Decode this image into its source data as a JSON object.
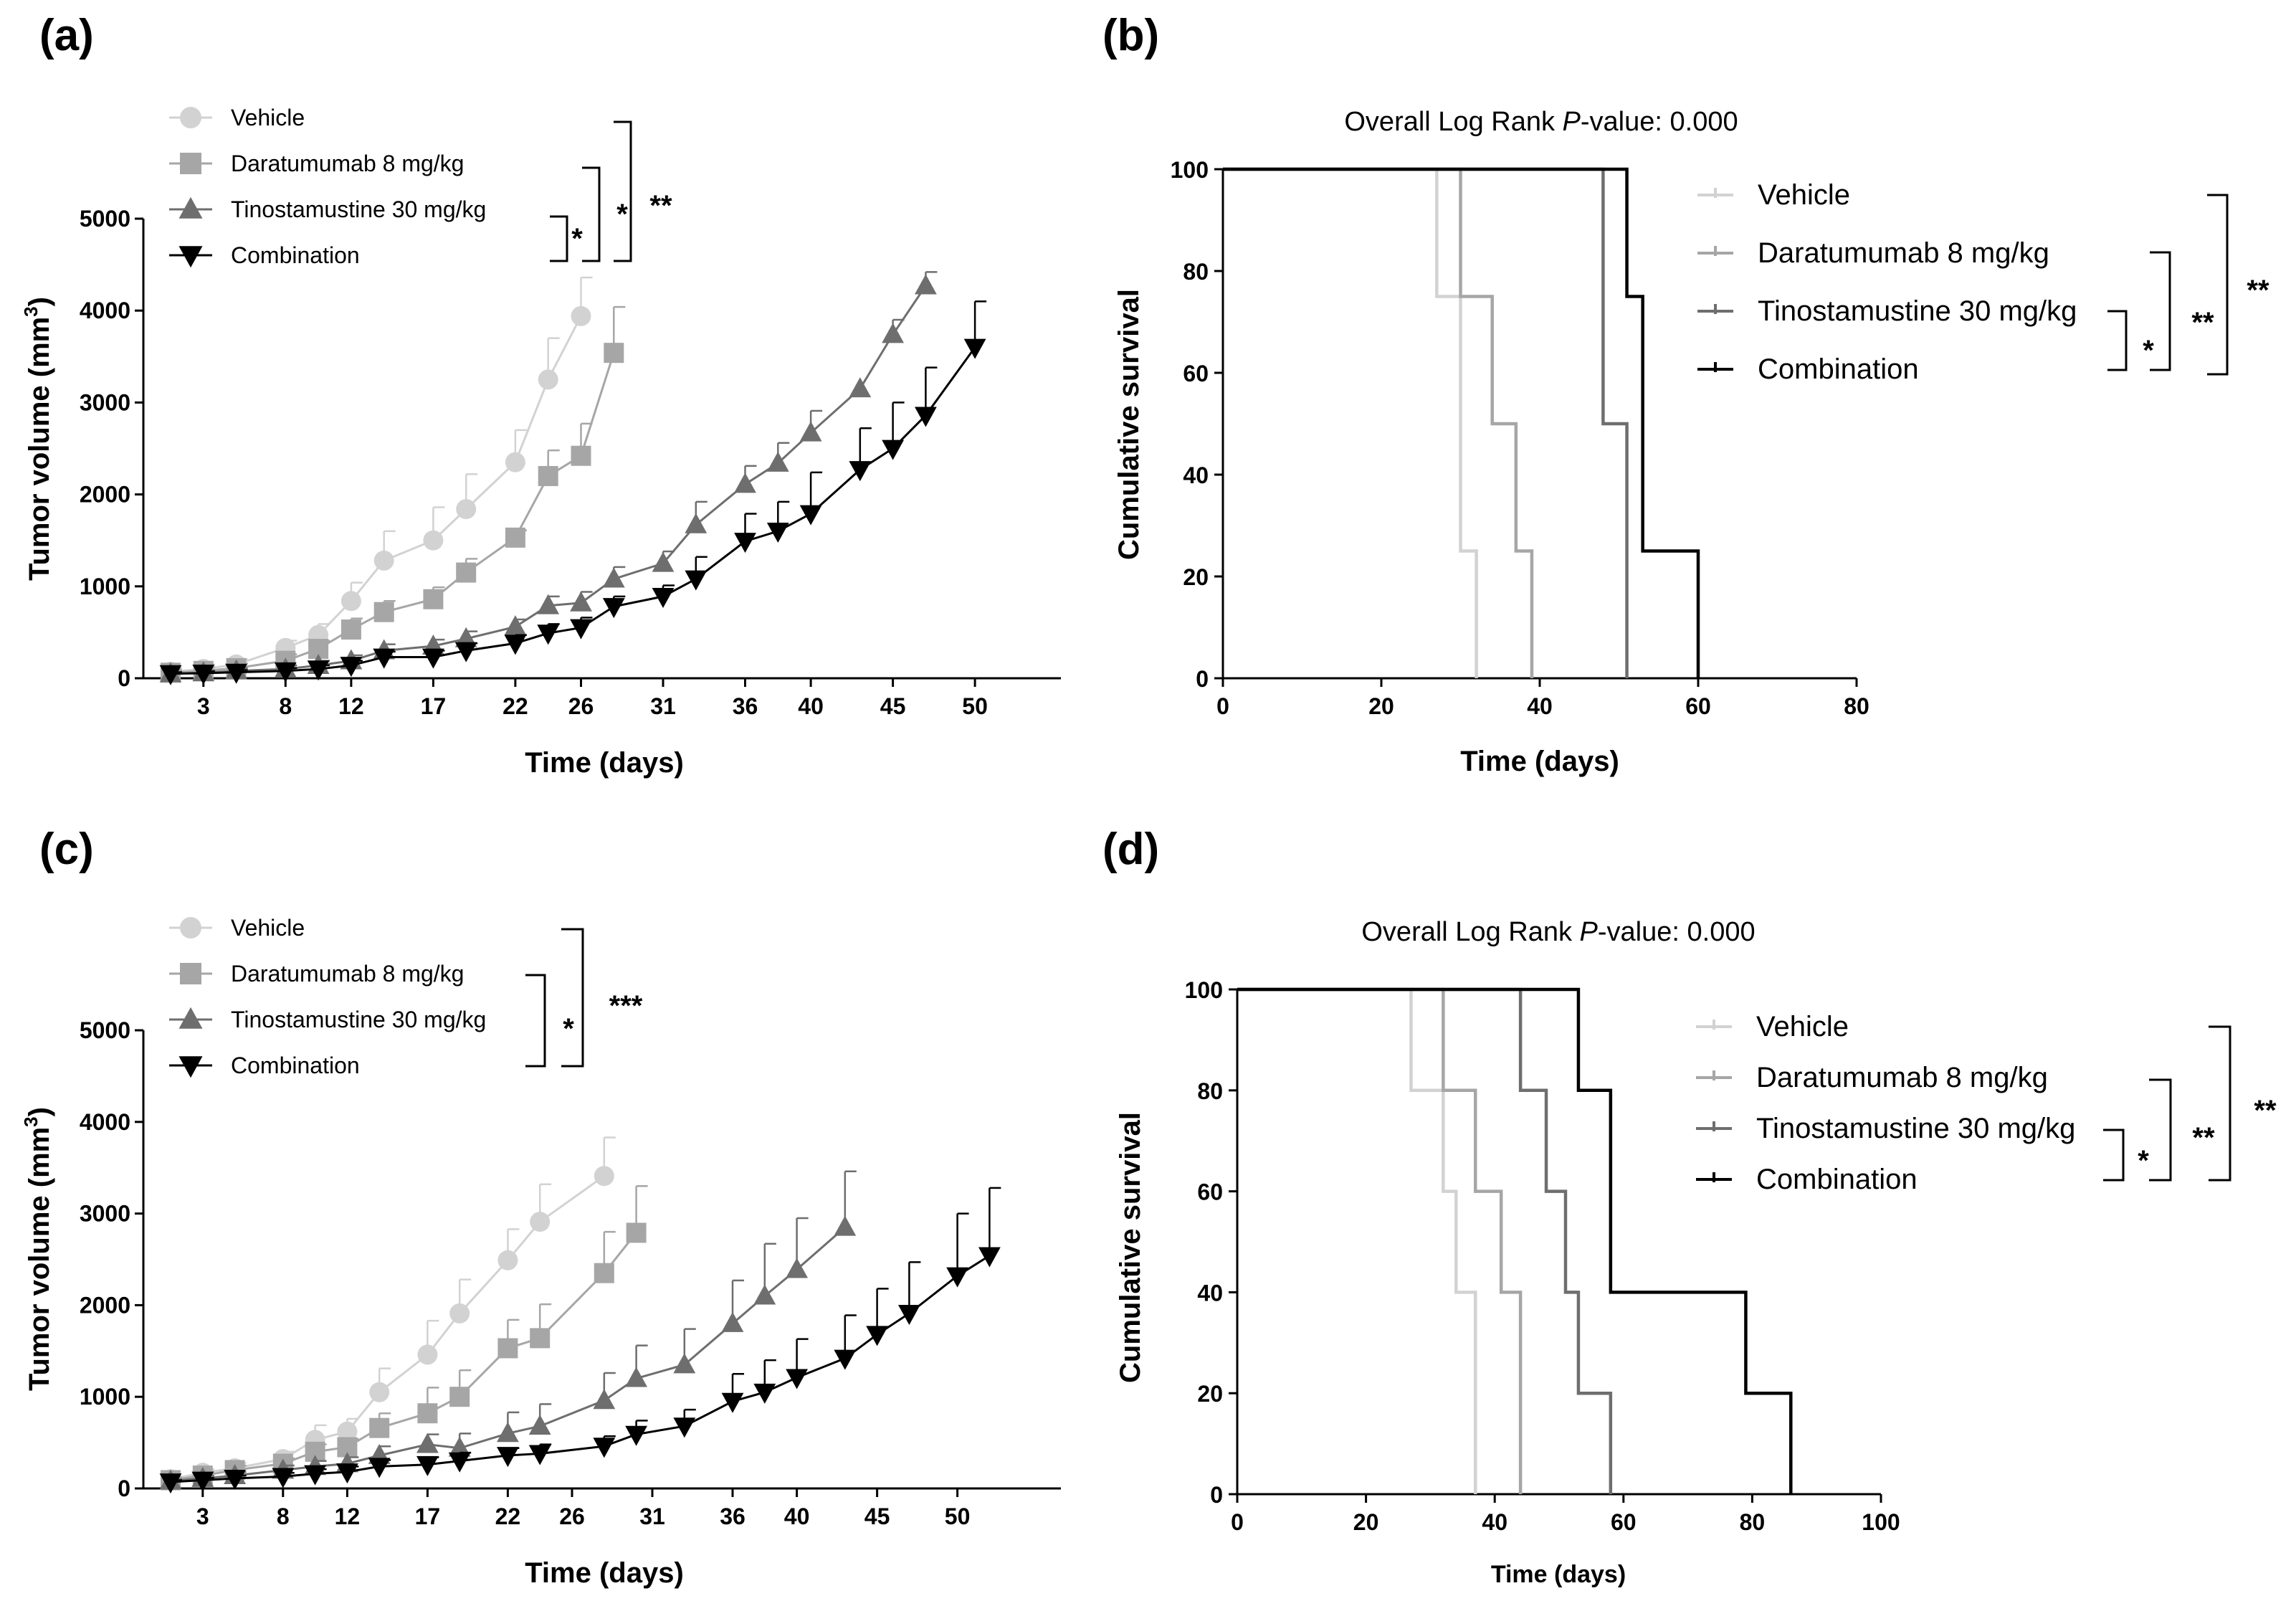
{
  "legend": [
    "Vehicle",
    "Daratumumab 8 mg/kg",
    "Tinostamustine 30 mg/kg",
    "Combination"
  ],
  "colors": {
    "Vehicle": "#d2d2d2",
    "Daratumumab 8 mg/kg": "#a6a6a6",
    "Tinostamustine 30 mg/kg": "#6e6e6e",
    "Combination": "#000000"
  },
  "chart_data": [
    {
      "panel": "(a)",
      "type": "line",
      "xlabel": "Time (days)",
      "ylabel": "Tumor volume (mm3)",
      "x_ticks": [
        "3",
        "8",
        "12",
        "17",
        "22",
        "26",
        "31",
        "36",
        "40",
        "45",
        "50"
      ],
      "ylim": [
        0,
        5000
      ],
      "y_ticks": [
        "0",
        "1000",
        "2000",
        "3000",
        "4000",
        "5000"
      ],
      "markers": [
        "circle",
        "square",
        "triangle-up",
        "triangle-down"
      ],
      "series": [
        {
          "name": "Vehicle",
          "x": [
            1,
            3,
            5,
            8,
            10,
            12,
            14,
            17,
            19,
            22,
            24,
            26
          ],
          "y": [
            70,
            100,
            150,
            330,
            470,
            840,
            1280,
            1500,
            1840,
            2350,
            3250,
            3940
          ],
          "err": [
            40,
            50,
            60,
            80,
            120,
            200,
            320,
            360,
            380,
            350,
            450,
            420
          ]
        },
        {
          "name": "Daratumumab 8 mg/kg",
          "x": [
            1,
            3,
            5,
            8,
            10,
            12,
            14,
            17,
            19,
            22,
            24,
            26,
            28
          ],
          "y": [
            60,
            80,
            110,
            190,
            320,
            530,
            720,
            860,
            1150,
            1530,
            2200,
            2420,
            3540
          ],
          "err": [
            30,
            40,
            50,
            70,
            90,
            120,
            120,
            130,
            150,
            80,
            280,
            350,
            500
          ]
        },
        {
          "name": "Tinostamustine 30 mg/kg",
          "x": [
            1,
            3,
            5,
            8,
            10,
            12,
            14,
            17,
            19,
            22,
            24,
            26,
            28,
            31,
            33,
            36,
            38,
            40,
            43,
            45,
            47
          ],
          "y": [
            50,
            60,
            80,
            100,
            140,
            190,
            300,
            350,
            430,
            560,
            790,
            820,
            1080,
            1250,
            1670,
            2110,
            2340,
            2670,
            3150,
            3740,
            4270
          ],
          "err": [
            20,
            25,
            30,
            40,
            50,
            60,
            70,
            70,
            80,
            80,
            100,
            120,
            130,
            130,
            250,
            200,
            220,
            240,
            0,
            160,
            150
          ]
        },
        {
          "name": "Combination",
          "x": [
            1,
            3,
            5,
            8,
            10,
            12,
            14,
            17,
            19,
            22,
            24,
            26,
            28,
            31,
            33,
            36,
            38,
            40,
            43,
            45,
            47,
            50
          ],
          "y": [
            50,
            55,
            65,
            80,
            100,
            140,
            230,
            230,
            300,
            380,
            490,
            550,
            780,
            890,
            1080,
            1490,
            1600,
            1790,
            2270,
            2500,
            2860,
            3600
          ],
          "err": [
            15,
            20,
            25,
            30,
            40,
            50,
            60,
            70,
            80,
            90,
            100,
            110,
            110,
            120,
            240,
            300,
            320,
            450,
            450,
            500,
            520,
            500
          ]
        }
      ],
      "legend_position": "top-left",
      "significance": [
        "*",
        "*",
        "**"
      ]
    },
    {
      "panel": "(b)",
      "type": "line",
      "subtype": "kaplan-meier",
      "title": "Overall Log Rank P-value: 0.000",
      "xlabel": "Time (days)",
      "ylabel": "Cumulative survival",
      "xlim": [
        0,
        80
      ],
      "ylim": [
        0,
        100
      ],
      "x_ticks": [
        "0",
        "20",
        "40",
        "60",
        "80"
      ],
      "y_ticks": [
        "0",
        "20",
        "40",
        "60",
        "80",
        "100"
      ],
      "series": [
        {
          "name": "Vehicle",
          "x": [
            0,
            27,
            30,
            32
          ],
          "y": [
            100,
            75,
            25,
            0
          ]
        },
        {
          "name": "Daratumumab 8 mg/kg",
          "x": [
            0,
            30,
            34,
            37,
            39
          ],
          "y": [
            100,
            75,
            50,
            25,
            0
          ]
        },
        {
          "name": "Tinostamustine 30 mg/kg",
          "x": [
            0,
            48,
            51
          ],
          "y": [
            100,
            50,
            0
          ]
        },
        {
          "name": "Combination",
          "x": [
            0,
            51,
            53,
            60
          ],
          "y": [
            100,
            75,
            25,
            0
          ]
        }
      ],
      "legend_position": "top-right",
      "significance": [
        "*",
        "**",
        "**"
      ]
    },
    {
      "panel": "(c)",
      "type": "line",
      "xlabel": "Time (days)",
      "ylabel": "Tumor volume (mm3)",
      "x_ticks": [
        "3",
        "8",
        "12",
        "17",
        "22",
        "26",
        "31",
        "36",
        "40",
        "45",
        "50"
      ],
      "ylim": [
        0,
        5000
      ],
      "y_ticks": [
        "0",
        "1000",
        "2000",
        "3000",
        "4000",
        "5000"
      ],
      "markers": [
        "circle",
        "square",
        "triangle-up",
        "triangle-down"
      ],
      "series": [
        {
          "name": "Vehicle",
          "x": [
            1,
            3,
            5,
            8,
            10,
            12,
            14,
            17,
            19,
            22,
            24,
            28
          ],
          "y": [
            100,
            170,
            220,
            320,
            530,
            620,
            1050,
            1460,
            1910,
            2490,
            2910,
            3410
          ],
          "err": [
            30,
            40,
            60,
            80,
            160,
            140,
            260,
            370,
            370,
            340,
            410,
            420
          ]
        },
        {
          "name": "Daratumumab 8 mg/kg",
          "x": [
            1,
            3,
            5,
            8,
            10,
            12,
            14,
            17,
            19,
            22,
            24,
            28,
            30
          ],
          "y": [
            90,
            140,
            200,
            270,
            400,
            450,
            660,
            820,
            1000,
            1530,
            1640,
            2350,
            2790
          ],
          "err": [
            30,
            40,
            50,
            60,
            80,
            90,
            160,
            280,
            290,
            310,
            370,
            450,
            510
          ]
        },
        {
          "name": "Tinostamustine 30 mg/kg",
          "x": [
            1,
            3,
            5,
            8,
            10,
            12,
            14,
            17,
            19,
            22,
            24,
            28,
            30,
            33,
            36,
            38,
            40,
            43
          ],
          "y": [
            80,
            110,
            140,
            200,
            240,
            270,
            360,
            480,
            440,
            600,
            680,
            960,
            1200,
            1350,
            1800,
            2100,
            2390,
            2850
          ],
          "err": [
            20,
            30,
            40,
            50,
            60,
            70,
            100,
            110,
            160,
            230,
            240,
            300,
            360,
            390,
            470,
            570,
            560,
            610
          ]
        },
        {
          "name": "Combination",
          "x": [
            1,
            3,
            5,
            8,
            10,
            12,
            14,
            17,
            19,
            22,
            24,
            28,
            30,
            33,
            36,
            38,
            40,
            43,
            45,
            47,
            50,
            52
          ],
          "y": [
            70,
            90,
            110,
            130,
            160,
            180,
            240,
            260,
            300,
            360,
            380,
            460,
            590,
            680,
            950,
            1050,
            1210,
            1420,
            1680,
            1910,
            2320,
            2540
          ],
          "err": [
            20,
            25,
            30,
            40,
            50,
            60,
            70,
            80,
            90,
            80,
            100,
            110,
            150,
            180,
            300,
            350,
            420,
            470,
            500,
            560,
            680,
            740
          ]
        }
      ],
      "legend_position": "top-left",
      "significance": [
        "*",
        "***"
      ]
    },
    {
      "panel": "(d)",
      "type": "line",
      "subtype": "kaplan-meier",
      "title": "Overall Log Rank P-value: 0.000",
      "xlabel": "Time (days)",
      "ylabel": "Cumulative survival",
      "xlim": [
        0,
        100
      ],
      "ylim": [
        0,
        100
      ],
      "x_ticks": [
        "0",
        "20",
        "40",
        "60",
        "80",
        "100"
      ],
      "y_ticks": [
        "0",
        "20",
        "40",
        "60",
        "80",
        "100"
      ],
      "series": [
        {
          "name": "Vehicle",
          "x": [
            0,
            27,
            32,
            34,
            37
          ],
          "y": [
            100,
            80,
            60,
            40,
            0
          ]
        },
        {
          "name": "Daratumumab 8 mg/kg",
          "x": [
            0,
            32,
            37,
            41,
            44
          ],
          "y": [
            100,
            80,
            60,
            40,
            0
          ]
        },
        {
          "name": "Tinostamustine 30 mg/kg",
          "x": [
            0,
            44,
            48,
            51,
            53,
            58
          ],
          "y": [
            100,
            80,
            60,
            40,
            20,
            0
          ]
        },
        {
          "name": "Combination",
          "x": [
            0,
            53,
            58,
            79,
            86
          ],
          "y": [
            100,
            80,
            40,
            20,
            0
          ]
        }
      ],
      "legend_position": "top-right",
      "significance": [
        "*",
        "**",
        "**"
      ]
    }
  ]
}
